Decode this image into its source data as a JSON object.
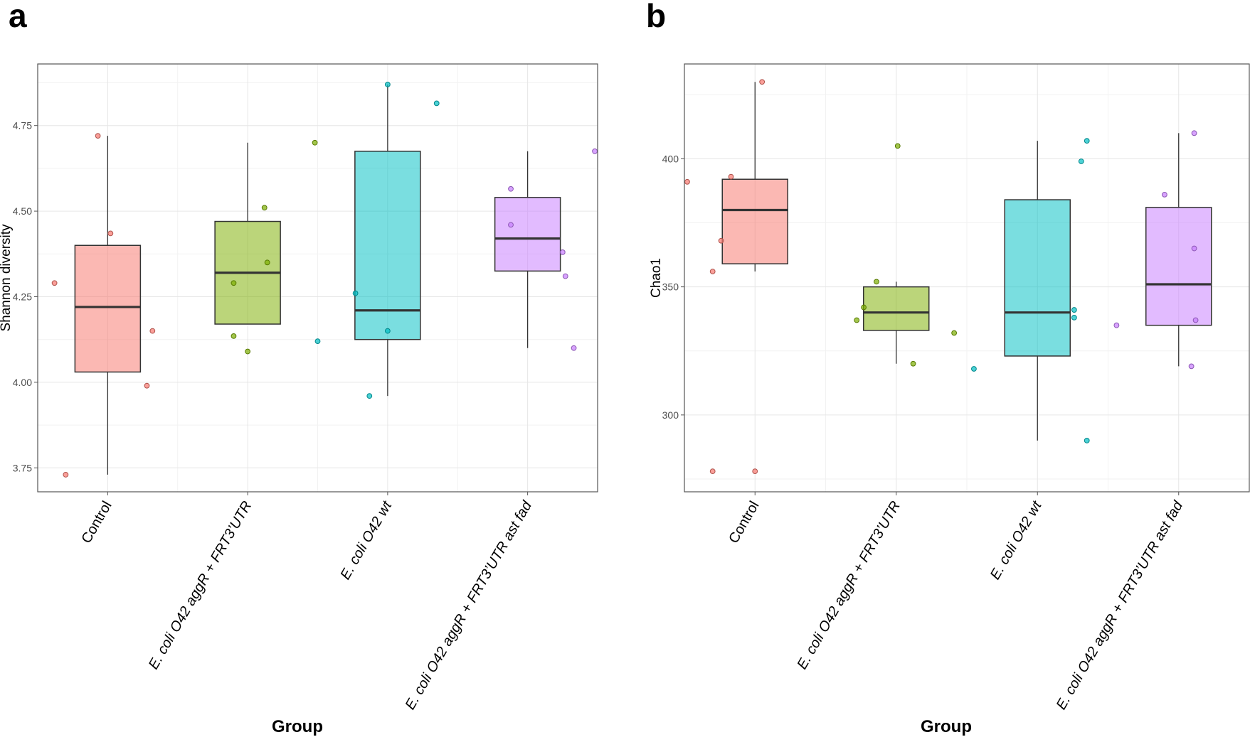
{
  "chart_data": [
    {
      "panel": "a",
      "type": "boxplot",
      "xlabel": "Group",
      "ylabel": "Shannon diversity",
      "ylim": [
        3.68,
        4.93
      ],
      "yticks": [
        3.75,
        4.0,
        4.25,
        4.5,
        4.75
      ],
      "yticklabels": [
        "3.75",
        "4.00",
        "4.25",
        "4.50",
        "4.75"
      ],
      "groups": [
        {
          "label": "Control",
          "italic": false,
          "color": "#F8766D",
          "stats": {
            "min": 3.73,
            "q1": 4.03,
            "median": 4.22,
            "q3": 4.4,
            "max": 4.72
          },
          "points": [
            [
              -0.3,
              3.73
            ],
            [
              -0.38,
              4.29
            ],
            [
              -0.07,
              4.72
            ],
            [
              0.02,
              4.435
            ],
            [
              0.32,
              4.15
            ],
            [
              0.28,
              3.99
            ]
          ]
        },
        {
          "label": "E. coli O42 aggR + FRT3’UTR",
          "italic": true,
          "color": "#7CAE00",
          "stats": {
            "min": 4.17,
            "q1": 4.17,
            "median": 4.32,
            "q3": 4.47,
            "max": 4.7
          },
          "points": [
            [
              -0.1,
              4.29
            ],
            [
              -0.1,
              4.135
            ],
            [
              0.0,
              4.09
            ],
            [
              0.12,
              4.51
            ],
            [
              0.14,
              4.35
            ],
            [
              0.48,
              4.7
            ]
          ]
        },
        {
          "label": "E. coli O42 wt",
          "italic": true,
          "color": "#00BFC4",
          "stats": {
            "min": 3.96,
            "q1": 4.125,
            "median": 4.21,
            "q3": 4.675,
            "max": 4.87
          },
          "points": [
            [
              -0.5,
              4.12
            ],
            [
              -0.23,
              4.26
            ],
            [
              -0.13,
              3.96
            ],
            [
              0.0,
              4.87
            ],
            [
              0.0,
              4.15
            ],
            [
              0.35,
              4.815
            ]
          ]
        },
        {
          "label": "E. coli O42 aggR + FRT3’UTR ast fad",
          "italic": true,
          "color": "#C77CFF",
          "stats": {
            "min": 4.1,
            "q1": 4.325,
            "median": 4.42,
            "q3": 4.54,
            "max": 4.675
          },
          "points": [
            [
              -0.12,
              4.565
            ],
            [
              -0.12,
              4.46
            ],
            [
              0.25,
              4.38
            ],
            [
              0.27,
              4.31
            ],
            [
              0.33,
              4.1
            ],
            [
              0.48,
              4.675
            ]
          ]
        }
      ]
    },
    {
      "panel": "b",
      "type": "boxplot",
      "xlabel": "Group",
      "ylabel": "Chao1",
      "ylim": [
        270,
        437
      ],
      "yticks": [
        300,
        350,
        400
      ],
      "yticklabels": [
        "300",
        "350",
        "400"
      ],
      "groups": [
        {
          "label": "Control",
          "italic": false,
          "color": "#F8766D",
          "stats": {
            "min": 356,
            "q1": 359,
            "median": 380,
            "q3": 392,
            "max": 430
          },
          "points": [
            [
              -0.48,
              391
            ],
            [
              -0.3,
              356
            ],
            [
              -0.3,
              278
            ],
            [
              -0.24,
              368
            ],
            [
              -0.17,
              393
            ],
            [
              0.05,
              430
            ],
            [
              0.0,
              278
            ]
          ]
        },
        {
          "label": "E. coli O42 aggR + FRT3’UTR",
          "italic": true,
          "color": "#7CAE00",
          "stats": {
            "min": 320,
            "q1": 333,
            "median": 340,
            "q3": 350,
            "max": 352
          },
          "points": [
            [
              -0.28,
              337
            ],
            [
              -0.23,
              342
            ],
            [
              -0.14,
              352
            ],
            [
              0.01,
              405
            ],
            [
              0.12,
              320
            ],
            [
              0.41,
              332
            ]
          ]
        },
        {
          "label": "E. coli O42 wt",
          "italic": true,
          "color": "#00BFC4",
          "stats": {
            "min": 290,
            "q1": 323,
            "median": 340,
            "q3": 384,
            "max": 407
          },
          "points": [
            [
              -0.45,
              318
            ],
            [
              0.31,
              399
            ],
            [
              0.35,
              407
            ],
            [
              0.35,
              290
            ],
            [
              0.26,
              341
            ],
            [
              0.26,
              338
            ]
          ]
        },
        {
          "label": "E. coli O42 aggR + FRT3’UTR ast fad",
          "italic": true,
          "color": "#C77CFF",
          "stats": {
            "min": 319,
            "q1": 335,
            "median": 351,
            "q3": 381,
            "max": 410
          },
          "points": [
            [
              -0.44,
              335
            ],
            [
              -0.1,
              386
            ],
            [
              0.11,
              410
            ],
            [
              0.11,
              365
            ],
            [
              0.12,
              337
            ],
            [
              0.09,
              319
            ]
          ]
        }
      ]
    }
  ],
  "panel_labels": [
    "a",
    "b"
  ]
}
